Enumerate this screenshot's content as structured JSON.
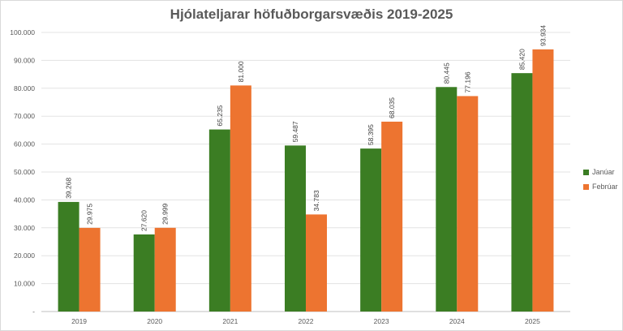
{
  "chart_data": {
    "type": "bar",
    "title": "Hjólateljarar höfuðborgarsvæðis 2019-2025",
    "categories": [
      "2019",
      "2020",
      "2021",
      "2022",
      "2023",
      "2024",
      "2025"
    ],
    "series": [
      {
        "name": "Janúar",
        "color": "#3b7d23",
        "values": [
          39268,
          27620,
          65235,
          59487,
          58395,
          80445,
          85420
        ],
        "labels": [
          "39.268",
          "27.620",
          "65.235",
          "59.487",
          "58.395",
          "80.445",
          "85.420"
        ]
      },
      {
        "name": "Febrúar",
        "color": "#ed7430",
        "values": [
          29975,
          29999,
          81000,
          34783,
          68035,
          77196,
          93934
        ],
        "labels": [
          "29.975",
          "29.999",
          "81.000",
          "34.783",
          "68.035",
          "77.196",
          "93.934"
        ]
      }
    ],
    "ylim": [
      0,
      100000
    ],
    "yticks": [
      0,
      10000,
      20000,
      30000,
      40000,
      50000,
      60000,
      70000,
      80000,
      90000,
      100000
    ],
    "ytick_labels": [
      "-",
      "10.000",
      "20.000",
      "30.000",
      "40.000",
      "50.000",
      "60.000",
      "70.000",
      "80.000",
      "90.000",
      "100.000"
    ],
    "grid": true,
    "legend_position": "right"
  }
}
